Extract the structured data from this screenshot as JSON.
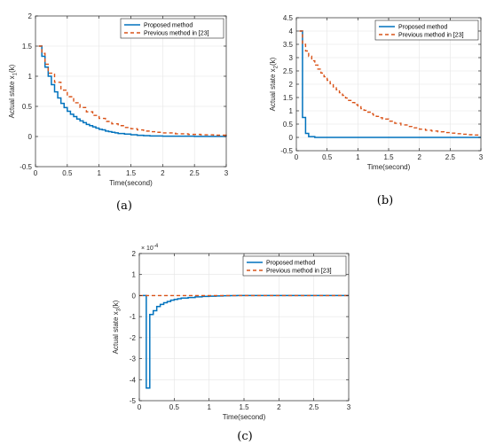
{
  "colors": {
    "proposed": "#0072BD",
    "previous": "#D95319",
    "axis": "#262626",
    "grid": "#e5e5e5"
  },
  "chart_data": [
    {
      "type": "line",
      "panel_label": "(a)",
      "xlabel": "Time(second)",
      "ylabel": "Actual state x",
      "ylabel_sub": "1",
      "ylabel_suffix": "(k)",
      "xlim": [
        0,
        3
      ],
      "ylim": [
        -0.5,
        2
      ],
      "xticks": [
        0,
        0.5,
        1,
        1.5,
        2,
        2.5,
        3
      ],
      "xtick_labels": [
        "0",
        "0.5",
        "1",
        "1.5",
        "2",
        "2.5",
        "3"
      ],
      "yticks": [
        -0.5,
        0,
        0.5,
        1,
        1.5,
        2
      ],
      "ytick_labels": [
        "-0.5",
        "0",
        "0.5",
        "1",
        "1.5",
        "2"
      ],
      "grid": true,
      "legend_position": "top-right",
      "series": [
        {
          "name": "Proposed method",
          "style": "step-solid",
          "x": [
            0.05,
            0.1,
            0.15,
            0.2,
            0.25,
            0.3,
            0.35,
            0.4,
            0.45,
            0.5,
            0.55,
            0.6,
            0.65,
            0.7,
            0.75,
            0.8,
            0.85,
            0.9,
            0.95,
            1.0,
            1.05,
            1.1,
            1.15,
            1.2,
            1.25,
            1.3,
            1.4,
            1.5,
            1.6,
            1.7,
            1.8,
            2.0,
            2.5,
            3.0
          ],
          "y": [
            1.5,
            1.33,
            1.15,
            1.0,
            0.86,
            0.74,
            0.64,
            0.55,
            0.48,
            0.42,
            0.37,
            0.33,
            0.29,
            0.26,
            0.23,
            0.2,
            0.18,
            0.16,
            0.14,
            0.12,
            0.11,
            0.09,
            0.08,
            0.07,
            0.06,
            0.05,
            0.04,
            0.03,
            0.02,
            0.015,
            0.01,
            0.005,
            0.002,
            0.0
          ]
        },
        {
          "name": "Previous method in [23]",
          "style": "step-dashed",
          "x": [
            0.05,
            0.1,
            0.15,
            0.2,
            0.3,
            0.4,
            0.5,
            0.6,
            0.7,
            0.8,
            0.9,
            1.0,
            1.1,
            1.2,
            1.3,
            1.4,
            1.5,
            1.6,
            1.7,
            1.8,
            1.9,
            2.0,
            2.2,
            2.4,
            2.6,
            2.8,
            3.0
          ],
          "y": [
            1.5,
            1.38,
            1.2,
            1.05,
            0.9,
            0.77,
            0.66,
            0.56,
            0.48,
            0.41,
            0.35,
            0.3,
            0.25,
            0.21,
            0.18,
            0.15,
            0.13,
            0.11,
            0.09,
            0.08,
            0.07,
            0.06,
            0.045,
            0.035,
            0.028,
            0.022,
            0.018
          ]
        }
      ]
    },
    {
      "type": "line",
      "panel_label": "(b)",
      "xlabel": "Time(second)",
      "ylabel": "Actual state x",
      "ylabel_sub": "2",
      "ylabel_suffix": "(k)",
      "xlim": [
        0,
        3
      ],
      "ylim": [
        -0.5,
        4.5
      ],
      "xticks": [
        0,
        0.5,
        1,
        1.5,
        2,
        2.5,
        3
      ],
      "xtick_labels": [
        "0",
        "0.5",
        "1",
        "1.5",
        "2",
        "2.5",
        "3"
      ],
      "yticks": [
        -0.5,
        0,
        0.5,
        1,
        1.5,
        2,
        2.5,
        3,
        3.5,
        4,
        4.5
      ],
      "ytick_labels": [
        "-0.5",
        "0",
        "0.5",
        "1",
        "1.5",
        "2",
        "2.5",
        "3",
        "3.5",
        "4",
        "4.5"
      ],
      "grid": true,
      "legend_position": "top-right",
      "series": [
        {
          "name": "Proposed method",
          "style": "step-solid",
          "x": [
            0.05,
            0.1,
            0.15,
            0.2,
            0.3,
            3.0
          ],
          "y": [
            4.0,
            0.75,
            0.15,
            0.03,
            0.0,
            0.0
          ]
        },
        {
          "name": "Previous method in [23]",
          "style": "step-dashed",
          "x": [
            0.05,
            0.1,
            0.15,
            0.2,
            0.25,
            0.3,
            0.35,
            0.4,
            0.45,
            0.5,
            0.55,
            0.6,
            0.65,
            0.7,
            0.75,
            0.8,
            0.85,
            0.9,
            0.95,
            1.0,
            1.05,
            1.1,
            1.15,
            1.2,
            1.25,
            1.3,
            1.35,
            1.4,
            1.5,
            1.6,
            1.7,
            1.8,
            1.9,
            2.0,
            2.1,
            2.2,
            2.3,
            2.4,
            2.5,
            2.6,
            2.7,
            2.8,
            2.9,
            3.0
          ],
          "y": [
            4.0,
            3.5,
            3.25,
            3.05,
            2.88,
            2.72,
            2.57,
            2.42,
            2.28,
            2.15,
            2.02,
            1.9,
            1.79,
            1.68,
            1.58,
            1.48,
            1.39,
            1.31,
            1.23,
            1.15,
            1.08,
            1.02,
            0.95,
            0.89,
            0.84,
            0.79,
            0.74,
            0.69,
            0.61,
            0.53,
            0.47,
            0.41,
            0.36,
            0.31,
            0.27,
            0.24,
            0.21,
            0.18,
            0.16,
            0.14,
            0.12,
            0.1,
            0.09,
            0.08
          ]
        }
      ]
    },
    {
      "type": "line",
      "panel_label": "(c)",
      "xlabel": "Time(second)",
      "ylabel": "Actual state x",
      "ylabel_sub": "3",
      "ylabel_suffix": "(k)",
      "y_multiplier": "× 10",
      "y_multiplier_exp": "-4",
      "xlim": [
        0,
        3
      ],
      "ylim": [
        -5,
        2
      ],
      "xticks": [
        0,
        0.5,
        1,
        1.5,
        2,
        2.5,
        3
      ],
      "xtick_labels": [
        "0",
        "0.5",
        "1",
        "1.5",
        "2",
        "2.5",
        "3"
      ],
      "yticks": [
        -5,
        -4,
        -3,
        -2,
        -1,
        0,
        1,
        2
      ],
      "ytick_labels": [
        "-5",
        "-4",
        "-3",
        "-2",
        "-1",
        "0",
        "1",
        "2"
      ],
      "grid": true,
      "legend_position": "top-right",
      "series": [
        {
          "name": "Proposed method",
          "style": "step-solid",
          "x": [
            0.05,
            0.1,
            0.15,
            0.2,
            0.25,
            0.3,
            0.35,
            0.4,
            0.45,
            0.5,
            0.55,
            0.6,
            0.7,
            0.8,
            0.9,
            1.0,
            1.1,
            1.2,
            1.3,
            1.4,
            3.0
          ],
          "y": [
            0.0,
            -4.4,
            -0.9,
            -0.72,
            -0.52,
            -0.42,
            -0.34,
            -0.28,
            -0.22,
            -0.18,
            -0.15,
            -0.12,
            -0.09,
            -0.06,
            -0.04,
            -0.03,
            -0.02,
            -0.01,
            -0.005,
            0.0,
            0.0
          ]
        },
        {
          "name": "Previous method in [23]",
          "style": "dashed",
          "x": [
            0,
            3
          ],
          "y": [
            0,
            0
          ]
        }
      ]
    }
  ]
}
